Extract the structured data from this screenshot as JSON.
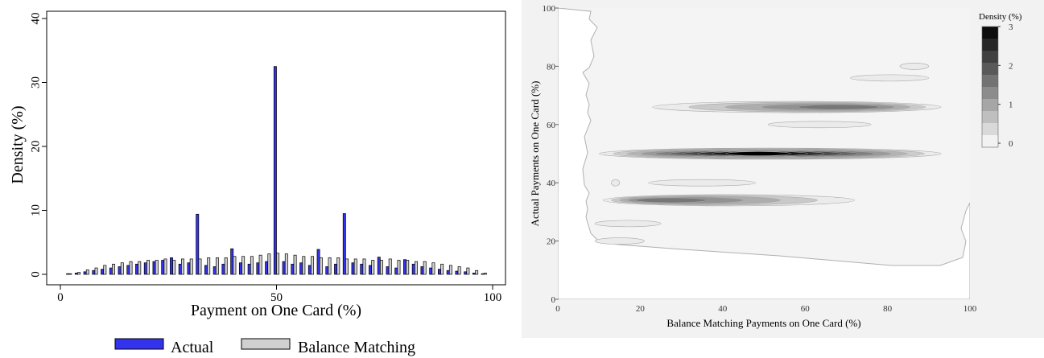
{
  "chart_data": [
    {
      "type": "bar",
      "xlabel": "Payment on One Card (%)",
      "ylabel": "Density (%)",
      "xlim": [
        0,
        100
      ],
      "ylim": [
        0,
        40
      ],
      "xticks": [
        "0",
        "50",
        "100"
      ],
      "yticks": [
        "0",
        "10",
        "20",
        "30",
        "40"
      ],
      "bar_width_units": 0.6,
      "legend_position": "bottom",
      "series": [
        {
          "name": "Actual",
          "color": "#3333ee",
          "x": [
            2,
            4,
            6,
            8,
            10,
            12,
            14,
            16,
            18,
            20,
            22,
            24,
            26,
            28,
            30,
            32,
            34,
            36,
            38,
            40,
            42,
            44,
            46,
            48,
            50,
            52,
            54,
            56,
            58,
            60,
            62,
            64,
            66,
            68,
            70,
            72,
            74,
            76,
            78,
            80,
            82,
            84,
            86,
            88,
            90,
            92,
            94,
            96,
            98
          ],
          "values": [
            0.1,
            0.2,
            0.4,
            0.6,
            0.8,
            1.0,
            1.2,
            1.4,
            1.6,
            1.8,
            2.0,
            2.2,
            2.6,
            1.6,
            1.8,
            9.4,
            1.4,
            1.2,
            1.6,
            4.0,
            1.8,
            1.6,
            1.8,
            2.0,
            32.5,
            2.0,
            1.6,
            1.8,
            1.4,
            3.9,
            1.2,
            1.6,
            9.5,
            1.8,
            1.6,
            1.4,
            2.7,
            1.2,
            1.0,
            2.3,
            1.6,
            1.2,
            1.0,
            0.8,
            0.6,
            0.5,
            0.4,
            0.2,
            0.1
          ]
        },
        {
          "name": "Balance Matching",
          "color": "#d0d0d0",
          "x": [
            2,
            4,
            6,
            8,
            10,
            12,
            14,
            16,
            18,
            20,
            22,
            24,
            26,
            28,
            30,
            32,
            34,
            36,
            38,
            40,
            42,
            44,
            46,
            48,
            50,
            52,
            54,
            56,
            58,
            60,
            62,
            64,
            66,
            68,
            70,
            72,
            74,
            76,
            78,
            80,
            82,
            84,
            86,
            88,
            90,
            92,
            94,
            96,
            98
          ],
          "values": [
            0.1,
            0.3,
            0.7,
            1.0,
            1.4,
            1.6,
            1.8,
            2.0,
            2.0,
            2.2,
            2.2,
            2.4,
            2.2,
            2.4,
            2.4,
            2.4,
            2.6,
            2.6,
            2.6,
            2.8,
            2.8,
            2.8,
            3.0,
            3.2,
            3.3,
            3.2,
            3.0,
            2.8,
            2.8,
            2.6,
            2.6,
            2.6,
            2.4,
            2.4,
            2.4,
            2.2,
            2.2,
            2.4,
            2.2,
            2.2,
            2.0,
            2.0,
            1.8,
            1.6,
            1.4,
            1.2,
            1.0,
            0.6,
            0.2
          ]
        }
      ]
    },
    {
      "type": "contour",
      "xlabel": "Balance Matching Payments on One Card (%)",
      "ylabel": "Actual Payments on One Card (%)",
      "xlim": [
        0,
        100
      ],
      "ylim": [
        0,
        100
      ],
      "xticks": [
        "0",
        "20",
        "40",
        "60",
        "80",
        "100"
      ],
      "yticks": [
        "0",
        "20",
        "40",
        "60",
        "80",
        "100"
      ],
      "colorbar": {
        "title": "Density (%)",
        "ticks": [
          "3",
          "2",
          "1",
          "0"
        ],
        "range": [
          0,
          3
        ],
        "levels": 10,
        "color_low": "#ffffff",
        "color_high": "#000000"
      },
      "blobs": [
        {
          "y": 50,
          "x_from": 10,
          "x_to": 93,
          "peak_x": 48,
          "peak": 3.0
        },
        {
          "y": 34,
          "x_from": 11,
          "x_to": 72,
          "peak_x": 22,
          "peak": 1.6
        },
        {
          "y": 66,
          "x_from": 23,
          "x_to": 93,
          "peak_x": 72,
          "peak": 1.6
        },
        {
          "y": 40,
          "x_from": 22,
          "x_to": 48,
          "peak_x": 38,
          "peak": 0.3
        },
        {
          "y": 60,
          "x_from": 51,
          "x_to": 76,
          "peak_x": 62,
          "peak": 0.3
        },
        {
          "y": 76,
          "x_from": 71,
          "x_to": 90,
          "peak_x": 81,
          "peak": 0.2
        },
        {
          "y": 80,
          "x_from": 83,
          "x_to": 90,
          "peak_x": 86,
          "peak": 0.15
        },
        {
          "y": 26,
          "x_from": 9,
          "x_to": 25,
          "peak_x": 16,
          "peak": 0.2
        },
        {
          "y": 20,
          "x_from": 9,
          "x_to": 21,
          "peak_x": 13,
          "peak": 0.15
        },
        {
          "y": 40,
          "x_from": 13,
          "x_to": 15,
          "peak_x": 14,
          "peak": 0.1
        }
      ]
    }
  ]
}
